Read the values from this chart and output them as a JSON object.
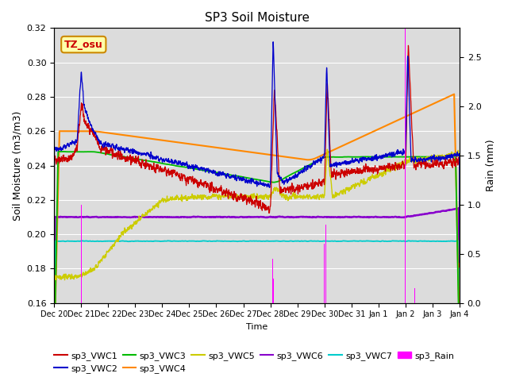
{
  "title": "SP3 Soil Moisture",
  "xlabel": "Time",
  "ylabel_left": "Soil Moisture (m3/m3)",
  "ylabel_right": "Rain (mm)",
  "ylim_left": [
    0.16,
    0.32
  ],
  "ylim_right": [
    0.0,
    2.8
  ],
  "background_color": "#dcdcdc",
  "fig_color": "#ffffff",
  "tz_label": "TZ_osu",
  "tz_box_color": "#ffffaa",
  "tz_box_edge": "#cc8800",
  "tz_text_color": "#cc0000",
  "series_colors": {
    "sp3_VWC1": "#cc0000",
    "sp3_VWC2": "#0000cc",
    "sp3_VWC3": "#00bb00",
    "sp3_VWC4": "#ff8800",
    "sp3_VWC5": "#cccc00",
    "sp3_VWC6": "#8800cc",
    "sp3_VWC7": "#00cccc",
    "sp3_Rain": "#ff00ff"
  },
  "tick_labels": [
    "Dec 20",
    "Dec 21",
    "Dec 22",
    "Dec 23",
    "Dec 24",
    "Dec 25",
    "Dec 26",
    "Dec 27",
    "Dec 28",
    "Dec 29",
    "Dec 30",
    "Dec 31",
    "Jan 1",
    "Jan 2",
    "Jan 3",
    "Jan 4"
  ]
}
